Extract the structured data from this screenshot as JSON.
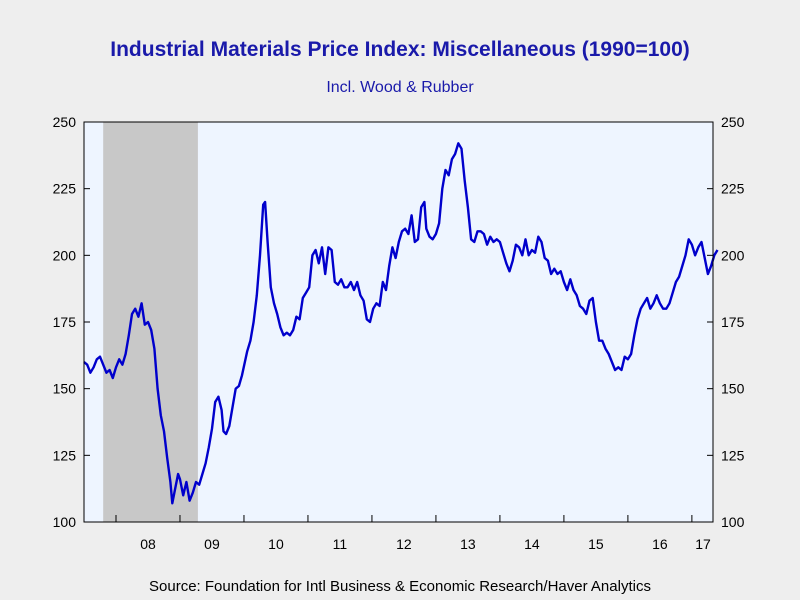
{
  "chart_data": {
    "type": "line",
    "title": "Industrial Materials Price Index: Miscellaneous (1990=100)",
    "subtitle": "Incl. Wood & Rubber",
    "source": "Source:  Foundation for Intl Business & Economic Research/Haver Analytics",
    "ylim": [
      100,
      250
    ],
    "yticks": [
      "100",
      "125",
      "150",
      "175",
      "200",
      "225",
      "250"
    ],
    "xlim": [
      2007.5,
      2017.33
    ],
    "xticks": [
      {
        "label": "08",
        "year": 2008.5
      },
      {
        "label": "09",
        "year": 2009.5
      },
      {
        "label": "10",
        "year": 2010.5
      },
      {
        "label": "11",
        "year": 2011.5
      },
      {
        "label": "12",
        "year": 2012.5
      },
      {
        "label": "13",
        "year": 2013.5
      },
      {
        "label": "14",
        "year": 2014.5
      },
      {
        "label": "15",
        "year": 2015.5
      },
      {
        "label": "16",
        "year": 2016.5
      },
      {
        "label": "17",
        "year": 2017.5
      }
    ],
    "recession": {
      "start": 2007.8,
      "end": 2009.28
    },
    "series": [
      {
        "color": "#0000cc",
        "points": [
          [
            2007.5,
            160
          ],
          [
            2007.55,
            159
          ],
          [
            2007.6,
            156
          ],
          [
            2007.65,
            158
          ],
          [
            2007.7,
            161
          ],
          [
            2007.75,
            162
          ],
          [
            2007.8,
            159
          ],
          [
            2007.85,
            156
          ],
          [
            2007.9,
            157
          ],
          [
            2007.95,
            154
          ],
          [
            2008.0,
            158
          ],
          [
            2008.05,
            161
          ],
          [
            2008.1,
            159
          ],
          [
            2008.15,
            163
          ],
          [
            2008.2,
            170
          ],
          [
            2008.25,
            178
          ],
          [
            2008.3,
            180
          ],
          [
            2008.35,
            177
          ],
          [
            2008.4,
            182
          ],
          [
            2008.45,
            174
          ],
          [
            2008.5,
            175
          ],
          [
            2008.55,
            172
          ],
          [
            2008.6,
            165
          ],
          [
            2008.65,
            150
          ],
          [
            2008.7,
            140
          ],
          [
            2008.75,
            134
          ],
          [
            2008.8,
            124
          ],
          [
            2008.85,
            115
          ],
          [
            2008.88,
            107
          ],
          [
            2008.92,
            112
          ],
          [
            2008.97,
            118
          ],
          [
            2009.0,
            116
          ],
          [
            2009.05,
            110
          ],
          [
            2009.1,
            115
          ],
          [
            2009.15,
            108
          ],
          [
            2009.2,
            111
          ],
          [
            2009.25,
            115
          ],
          [
            2009.3,
            114
          ],
          [
            2009.35,
            118
          ],
          [
            2009.4,
            122
          ],
          [
            2009.45,
            128
          ],
          [
            2009.5,
            135
          ],
          [
            2009.55,
            145
          ],
          [
            2009.6,
            147
          ],
          [
            2009.65,
            142
          ],
          [
            2009.68,
            134
          ],
          [
            2009.72,
            133
          ],
          [
            2009.77,
            136
          ],
          [
            2009.82,
            143
          ],
          [
            2009.87,
            150
          ],
          [
            2009.92,
            151
          ],
          [
            2009.97,
            155
          ],
          [
            2010.05,
            164
          ],
          [
            2010.1,
            168
          ],
          [
            2010.15,
            175
          ],
          [
            2010.2,
            185
          ],
          [
            2010.25,
            200
          ],
          [
            2010.3,
            219
          ],
          [
            2010.33,
            220
          ],
          [
            2010.37,
            205
          ],
          [
            2010.42,
            188
          ],
          [
            2010.47,
            182
          ],
          [
            2010.52,
            178
          ],
          [
            2010.57,
            173
          ],
          [
            2010.62,
            170
          ],
          [
            2010.67,
            171
          ],
          [
            2010.72,
            170
          ],
          [
            2010.77,
            172
          ],
          [
            2010.82,
            177
          ],
          [
            2010.87,
            176
          ],
          [
            2010.92,
            184
          ],
          [
            2010.97,
            186
          ],
          [
            2011.02,
            188
          ],
          [
            2011.07,
            200
          ],
          [
            2011.12,
            202
          ],
          [
            2011.17,
            197
          ],
          [
            2011.22,
            203
          ],
          [
            2011.27,
            193
          ],
          [
            2011.32,
            203
          ],
          [
            2011.37,
            202
          ],
          [
            2011.42,
            190
          ],
          [
            2011.47,
            189
          ],
          [
            2011.52,
            191
          ],
          [
            2011.57,
            188
          ],
          [
            2011.62,
            188
          ],
          [
            2011.67,
            190
          ],
          [
            2011.72,
            187
          ],
          [
            2011.77,
            190
          ],
          [
            2011.82,
            185
          ],
          [
            2011.87,
            183
          ],
          [
            2011.92,
            176
          ],
          [
            2011.97,
            175
          ],
          [
            2012.02,
            180
          ],
          [
            2012.07,
            182
          ],
          [
            2012.12,
            181
          ],
          [
            2012.17,
            190
          ],
          [
            2012.22,
            187
          ],
          [
            2012.27,
            196
          ],
          [
            2012.32,
            203
          ],
          [
            2012.37,
            199
          ],
          [
            2012.42,
            205
          ],
          [
            2012.47,
            209
          ],
          [
            2012.52,
            210
          ],
          [
            2012.57,
            208
          ],
          [
            2012.62,
            215
          ],
          [
            2012.67,
            205
          ],
          [
            2012.72,
            206
          ],
          [
            2012.77,
            218
          ],
          [
            2012.82,
            220
          ],
          [
            2012.85,
            210
          ],
          [
            2012.9,
            207
          ],
          [
            2012.95,
            206
          ],
          [
            2013.0,
            208
          ],
          [
            2013.05,
            212
          ],
          [
            2013.1,
            225
          ],
          [
            2013.15,
            232
          ],
          [
            2013.2,
            230
          ],
          [
            2013.25,
            236
          ],
          [
            2013.3,
            238
          ],
          [
            2013.35,
            242
          ],
          [
            2013.4,
            240
          ],
          [
            2013.45,
            228
          ],
          [
            2013.5,
            218
          ],
          [
            2013.55,
            206
          ],
          [
            2013.6,
            205
          ],
          [
            2013.65,
            209
          ],
          [
            2013.7,
            209
          ],
          [
            2013.75,
            208
          ],
          [
            2013.8,
            204
          ],
          [
            2013.85,
            207
          ],
          [
            2013.9,
            205
          ],
          [
            2013.95,
            206
          ],
          [
            2014.0,
            205
          ],
          [
            2014.05,
            201
          ],
          [
            2014.1,
            197
          ],
          [
            2014.15,
            194
          ],
          [
            2014.2,
            198
          ],
          [
            2014.25,
            204
          ],
          [
            2014.3,
            203
          ],
          [
            2014.35,
            200
          ],
          [
            2014.4,
            206
          ],
          [
            2014.45,
            200
          ],
          [
            2014.5,
            202
          ],
          [
            2014.55,
            201
          ],
          [
            2014.6,
            207
          ],
          [
            2014.65,
            205
          ],
          [
            2014.7,
            199
          ],
          [
            2014.75,
            198
          ],
          [
            2014.8,
            193
          ],
          [
            2014.85,
            195
          ],
          [
            2014.9,
            193
          ],
          [
            2014.95,
            194
          ],
          [
            2015.0,
            190
          ],
          [
            2015.05,
            187
          ],
          [
            2015.1,
            191
          ],
          [
            2015.15,
            187
          ],
          [
            2015.2,
            185
          ],
          [
            2015.25,
            181
          ],
          [
            2015.3,
            180
          ],
          [
            2015.35,
            178
          ],
          [
            2015.4,
            183
          ],
          [
            2015.45,
            184
          ],
          [
            2015.5,
            175
          ],
          [
            2015.55,
            168
          ],
          [
            2015.6,
            168
          ],
          [
            2015.65,
            165
          ],
          [
            2015.7,
            163
          ],
          [
            2015.75,
            160
          ],
          [
            2015.8,
            157
          ],
          [
            2015.85,
            158
          ],
          [
            2015.9,
            157
          ],
          [
            2015.95,
            162
          ],
          [
            2016.0,
            161
          ],
          [
            2016.05,
            163
          ],
          [
            2016.1,
            170
          ],
          [
            2016.15,
            176
          ],
          [
            2016.2,
            180
          ],
          [
            2016.25,
            182
          ],
          [
            2016.3,
            184
          ],
          [
            2016.35,
            180
          ],
          [
            2016.4,
            182
          ],
          [
            2016.45,
            185
          ],
          [
            2016.5,
            182
          ],
          [
            2016.55,
            180
          ],
          [
            2016.6,
            180
          ],
          [
            2016.65,
            182
          ],
          [
            2016.7,
            186
          ],
          [
            2016.75,
            190
          ],
          [
            2016.8,
            192
          ],
          [
            2016.85,
            196
          ],
          [
            2016.9,
            200
          ],
          [
            2016.95,
            206
          ],
          [
            2017.0,
            204
          ],
          [
            2017.05,
            200
          ],
          [
            2017.1,
            203
          ],
          [
            2017.15,
            205
          ],
          [
            2017.2,
            199
          ],
          [
            2017.25,
            193
          ],
          [
            2017.3,
            196
          ],
          [
            2017.35,
            200
          ],
          [
            2017.4,
            202
          ]
        ]
      }
    ]
  }
}
